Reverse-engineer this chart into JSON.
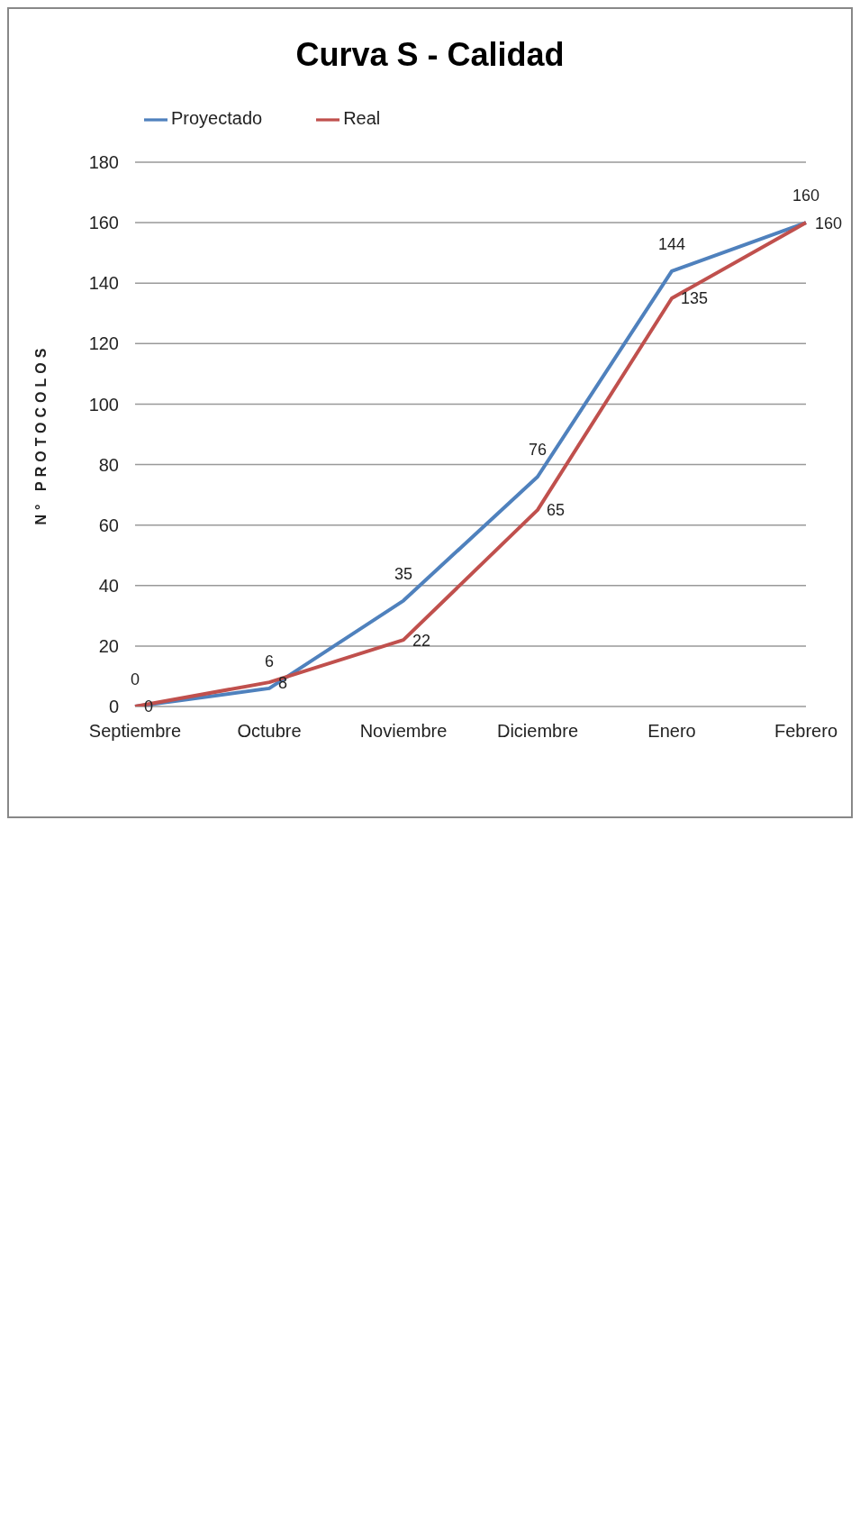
{
  "chart_data": {
    "type": "line",
    "title": "Curva S - Calidad",
    "ylabel": "N° PROTOCOLOS",
    "categories": [
      "Septiembre",
      "Octubre",
      "Noviembre",
      "Diciembre",
      "Enero",
      "Febrero"
    ],
    "series": [
      {
        "name": "Proyectado",
        "color": "#4f81bd",
        "values": [
          0,
          6,
          35,
          76,
          144,
          160
        ]
      },
      {
        "name": "Real",
        "color": "#c0504d",
        "values": [
          0,
          8,
          22,
          65,
          135,
          160
        ]
      }
    ],
    "ylim": [
      0,
      180
    ],
    "yticks": [
      0,
      20,
      40,
      60,
      80,
      100,
      120,
      140,
      160,
      180
    ],
    "grid": "y",
    "legend": "top left",
    "marker": "none",
    "line_style": "solid",
    "data_labels": true
  }
}
